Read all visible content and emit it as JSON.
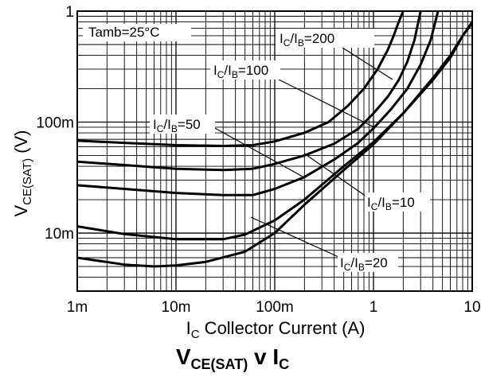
{
  "chart_data": {
    "type": "line",
    "title": "VCE(SAT) v IC",
    "title_main": "V",
    "title_sub": "CE(SAT)",
    "title_v": " v ",
    "title_i": "I",
    "title_isub": "C",
    "xlabel": "IC  Collector Current (A)",
    "xlabel_main": "I",
    "xlabel_sub": "C",
    "xlabel_rest": "  Collector Current (A)",
    "ylabel": "VCE(SAT)  (V)",
    "ylabel_main": "V",
    "ylabel_sub": "CE(SAT)",
    "ylabel_rest": "  (V)",
    "x_scale": "log",
    "y_scale": "log",
    "xlim": [
      0.001,
      10
    ],
    "ylim": [
      0.003,
      1
    ],
    "grid": true,
    "x_tick_labels": [
      "1m",
      "10m",
      "100m",
      "1",
      "10"
    ],
    "x_tick_values": [
      0.001,
      0.01,
      0.1,
      1,
      10
    ],
    "y_tick_labels": [
      "10m",
      "100m",
      "1"
    ],
    "y_tick_values": [
      0.01,
      0.1,
      1
    ],
    "condition": "Tamb=25°C",
    "series": [
      {
        "name": "IC/IB=200",
        "x": [
          0.001,
          0.003,
          0.01,
          0.03,
          0.06,
          0.1,
          0.2,
          0.35,
          0.55,
          0.8,
          1.1,
          1.4,
          1.6,
          1.8,
          2.0
        ],
        "values": [
          0.068,
          0.065,
          0.062,
          0.061,
          0.062,
          0.067,
          0.08,
          0.1,
          0.14,
          0.2,
          0.3,
          0.45,
          0.6,
          0.8,
          1.0
        ]
      },
      {
        "name": "IC/IB=100",
        "x": [
          0.001,
          0.003,
          0.01,
          0.03,
          0.06,
          0.1,
          0.2,
          0.4,
          0.7,
          1.0,
          1.4,
          1.8,
          2.2,
          2.6,
          3.0
        ],
        "values": [
          0.044,
          0.041,
          0.038,
          0.037,
          0.038,
          0.042,
          0.05,
          0.064,
          0.087,
          0.12,
          0.17,
          0.24,
          0.35,
          0.55,
          1.0
        ]
      },
      {
        "name": "IC/IB=50",
        "x": [
          0.001,
          0.003,
          0.01,
          0.03,
          0.06,
          0.1,
          0.2,
          0.4,
          0.7,
          1.0,
          1.5,
          2.2,
          3.0,
          3.8,
          4.5
        ],
        "values": [
          0.027,
          0.025,
          0.023,
          0.022,
          0.022,
          0.025,
          0.032,
          0.046,
          0.065,
          0.088,
          0.13,
          0.2,
          0.33,
          0.55,
          1.0
        ]
      },
      {
        "name": "IC/IB=20",
        "x": [
          0.001,
          0.003,
          0.01,
          0.03,
          0.05,
          0.1,
          0.2,
          0.5,
          1.0,
          2.0,
          4.0,
          6.0,
          8.0,
          10.0
        ],
        "values": [
          0.0115,
          0.0098,
          0.0088,
          0.0088,
          0.0097,
          0.013,
          0.02,
          0.04,
          0.066,
          0.12,
          0.25,
          0.4,
          0.6,
          0.78
        ]
      },
      {
        "name": "IC/IB=10",
        "x": [
          0.001,
          0.003,
          0.006,
          0.01,
          0.02,
          0.05,
          0.1,
          0.2,
          0.5,
          1.0,
          2.0,
          4.0,
          6.0,
          8.0,
          10.0
        ],
        "values": [
          0.006,
          0.0052,
          0.005,
          0.0051,
          0.0055,
          0.0068,
          0.01,
          0.018,
          0.037,
          0.063,
          0.12,
          0.24,
          0.38,
          0.6,
          0.8
        ]
      }
    ]
  }
}
